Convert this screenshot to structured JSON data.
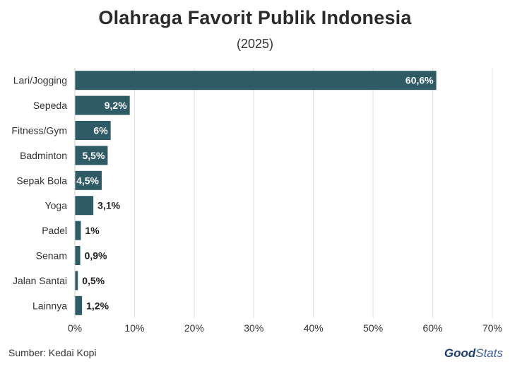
{
  "title": "Olahraga Favorit Publik Indonesia",
  "subtitle": "(2025)",
  "source": "Sumber: Kedai Kopi",
  "logo": {
    "part1": "Good",
    "part2": "Stats"
  },
  "colors": {
    "bar": "#2e5b66",
    "grid": "#e0e0e0",
    "label_inside": "#ffffff",
    "label_outside": "#222222"
  },
  "chart_data": {
    "type": "bar",
    "orientation": "horizontal",
    "categories": [
      "Lari/Jogging",
      "Sepeda",
      "Fitness/Gym",
      "Badminton",
      "Sepak Bola",
      "Yoga",
      "Padel",
      "Senam",
      "Jalan Santai",
      "Lainnya"
    ],
    "values": [
      60.6,
      9.2,
      6,
      5.5,
      4.5,
      3.1,
      1,
      0.9,
      0.5,
      1.2
    ],
    "value_labels": [
      "60,6%",
      "9,2%",
      "6%",
      "5,5%",
      "4,5%",
      "3,1%",
      "1%",
      "0,9%",
      "0,5%",
      "1,2%"
    ],
    "xlim": [
      0,
      70
    ],
    "xticks": [
      "0%",
      "10%",
      "20%",
      "30%",
      "40%",
      "50%",
      "60%",
      "70%"
    ],
    "grid": true,
    "xlabel": "",
    "ylabel": ""
  }
}
